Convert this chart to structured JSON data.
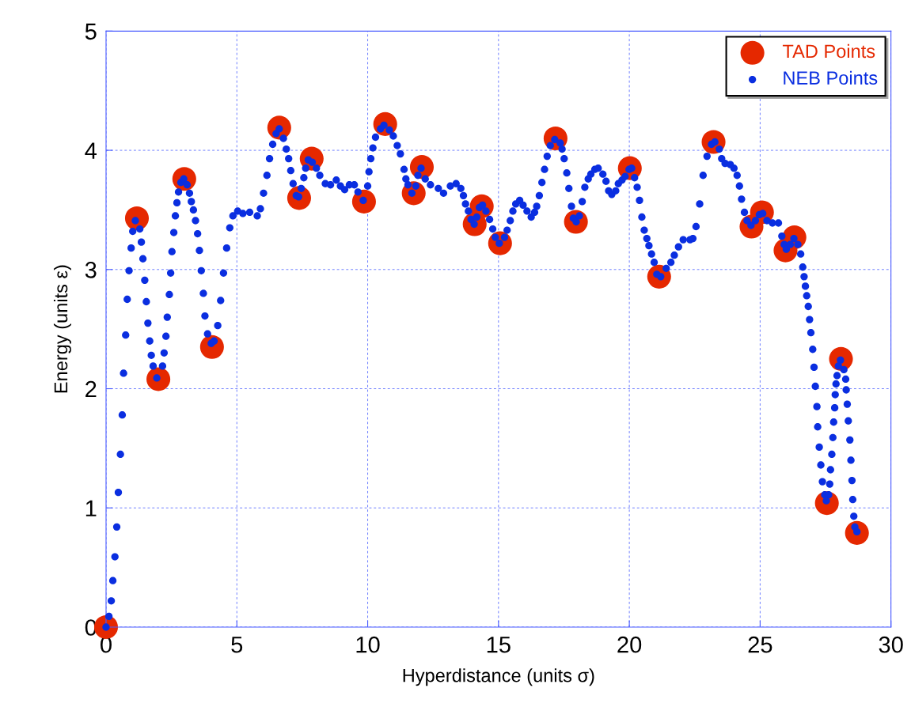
{
  "chart_data": {
    "type": "scatter",
    "xlabel": "Hyperdistance (units σ)",
    "ylabel": "Energy (units ε)",
    "xlim": [
      0,
      30
    ],
    "ylim": [
      0,
      5
    ],
    "xticks": [
      0,
      5,
      10,
      15,
      20,
      25,
      30
    ],
    "yticks": [
      0,
      1,
      2,
      3,
      4,
      5
    ],
    "grid": true,
    "legend": "top right",
    "marker": "circle",
    "series": [
      {
        "name": "TAD Points",
        "color": "#e52800",
        "x": [
          0,
          1.18,
          2.0,
          2.99,
          4.05,
          6.62,
          7.38,
          7.86,
          9.86,
          10.67,
          11.76,
          12.07,
          14.09,
          14.36,
          15.06,
          17.18,
          17.96,
          20.02,
          21.14,
          23.22,
          24.67,
          25.07,
          25.97,
          26.31,
          27.55,
          28.09,
          28.7
        ],
        "values": [
          0,
          3.43,
          2.08,
          3.76,
          2.35,
          4.19,
          3.6,
          3.93,
          3.57,
          4.22,
          3.64,
          3.86,
          3.38,
          3.53,
          3.22,
          4.1,
          3.4,
          3.85,
          2.94,
          4.07,
          3.36,
          3.48,
          3.16,
          3.27,
          1.04,
          2.25,
          0.79
        ]
      },
      {
        "name": "NEB Points",
        "color": "#0a2ee0",
        "x": [
          0,
          0.11,
          0.2,
          0.26,
          0.34,
          0.41,
          0.47,
          0.55,
          0.62,
          0.67,
          0.75,
          0.81,
          0.88,
          0.96,
          1.02,
          1.12,
          1.29,
          1.35,
          1.41,
          1.48,
          1.54,
          1.6,
          1.67,
          1.73,
          1.8,
          1.94,
          2.16,
          2.22,
          2.29,
          2.34,
          2.42,
          2.47,
          2.52,
          2.59,
          2.65,
          2.71,
          2.77,
          2.86,
          2.97,
          3.1,
          3.19,
          3.26,
          3.34,
          3.42,
          3.5,
          3.57,
          3.64,
          3.72,
          3.78,
          3.88,
          4.02,
          4.13,
          4.27,
          4.38,
          4.49,
          4.61,
          4.73,
          4.85,
          5.03,
          5.23,
          5.49,
          5.78,
          5.9,
          6.02,
          6.15,
          6.25,
          6.37,
          6.5,
          6.62,
          6.78,
          6.89,
          6.98,
          7.06,
          7.15,
          7.27,
          7.36,
          7.46,
          7.56,
          7.63,
          7.73,
          7.88,
          8.04,
          8.17,
          8.38,
          8.58,
          8.8,
          8.96,
          9.12,
          9.3,
          9.49,
          9.63,
          9.83,
          10.0,
          10.05,
          10.12,
          10.2,
          10.3,
          10.49,
          10.62,
          10.83,
          10.98,
          11.13,
          11.25,
          11.39,
          11.46,
          11.54,
          11.69,
          11.84,
          11.92,
          12.04,
          12.2,
          12.4,
          12.7,
          12.9,
          13.16,
          13.38,
          13.56,
          13.66,
          13.74,
          13.85,
          13.95,
          14.07,
          14.17,
          14.27,
          14.39,
          14.52,
          14.66,
          14.78,
          14.88,
          15.03,
          15.23,
          15.33,
          15.45,
          15.55,
          15.66,
          15.81,
          15.94,
          16.09,
          16.25,
          16.38,
          16.46,
          16.56,
          16.66,
          16.76,
          16.86,
          16.98,
          17.15,
          17.36,
          17.43,
          17.51,
          17.61,
          17.69,
          17.79,
          17.86,
          17.97,
          18.09,
          18.2,
          18.3,
          18.43,
          18.53,
          18.68,
          18.81,
          18.99,
          19.11,
          19.21,
          19.33,
          19.48,
          19.58,
          19.72,
          19.84,
          19.99,
          20.09,
          20.2,
          20.3,
          20.39,
          20.48,
          20.57,
          20.67,
          20.75,
          20.85,
          20.95,
          21.05,
          21.2,
          21.41,
          21.59,
          21.72,
          21.88,
          22.06,
          22.32,
          22.43,
          22.55,
          22.69,
          22.82,
          22.97,
          23.14,
          23.27,
          23.44,
          23.53,
          23.66,
          23.86,
          24.0,
          24.12,
          24.21,
          24.29,
          24.4,
          24.5,
          24.65,
          24.82,
          24.97,
          25.1,
          25.26,
          25.47,
          25.7,
          25.83,
          25.92,
          26.0,
          26.15,
          26.29,
          26.44,
          26.55,
          26.63,
          26.68,
          26.73,
          26.78,
          26.84,
          26.89,
          26.94,
          27.01,
          27.06,
          27.11,
          27.17,
          27.2,
          27.26,
          27.32,
          27.38,
          27.47,
          27.53,
          27.62,
          27.66,
          27.69,
          27.74,
          27.78,
          27.81,
          27.85,
          27.87,
          27.9,
          27.94,
          27.99,
          28.07,
          28.2,
          28.27,
          28.29,
          28.33,
          28.37,
          28.43,
          28.47,
          28.51,
          28.54,
          28.58,
          28.62,
          28.7
        ],
        "values": [
          0,
          0.09,
          0.22,
          0.39,
          0.59,
          0.84,
          1.13,
          1.45,
          1.78,
          2.13,
          2.45,
          2.75,
          2.99,
          3.18,
          3.32,
          3.41,
          3.34,
          3.23,
          3.09,
          2.91,
          2.73,
          2.55,
          2.4,
          2.28,
          2.19,
          2.09,
          2.19,
          2.3,
          2.44,
          2.6,
          2.79,
          2.97,
          3.15,
          3.31,
          3.45,
          3.56,
          3.65,
          3.73,
          3.76,
          3.71,
          3.64,
          3.57,
          3.5,
          3.41,
          3.3,
          3.16,
          2.99,
          2.8,
          2.61,
          2.46,
          2.38,
          2.4,
          2.53,
          2.74,
          2.97,
          3.18,
          3.35,
          3.45,
          3.49,
          3.47,
          3.48,
          3.45,
          3.51,
          3.64,
          3.79,
          3.93,
          4.05,
          4.14,
          4.18,
          4.1,
          4.01,
          3.93,
          3.83,
          3.72,
          3.62,
          3.61,
          3.68,
          3.77,
          3.85,
          3.92,
          3.9,
          3.85,
          3.79,
          3.72,
          3.71,
          3.75,
          3.7,
          3.67,
          3.71,
          3.71,
          3.65,
          3.58,
          3.7,
          3.82,
          3.93,
          4.02,
          4.11,
          4.18,
          4.21,
          4.17,
          4.12,
          4.04,
          3.97,
          3.84,
          3.76,
          3.71,
          3.64,
          3.7,
          3.79,
          3.85,
          3.76,
          3.71,
          3.68,
          3.64,
          3.7,
          3.72,
          3.68,
          3.62,
          3.55,
          3.49,
          3.42,
          3.38,
          3.44,
          3.52,
          3.54,
          3.49,
          3.42,
          3.34,
          3.27,
          3.22,
          3.27,
          3.33,
          3.41,
          3.49,
          3.55,
          3.58,
          3.54,
          3.49,
          3.44,
          3.48,
          3.53,
          3.62,
          3.73,
          3.84,
          3.95,
          4.04,
          4.09,
          4.06,
          4.01,
          3.93,
          3.81,
          3.68,
          3.53,
          3.43,
          3.4,
          3.45,
          3.57,
          3.69,
          3.76,
          3.8,
          3.84,
          3.85,
          3.8,
          3.74,
          3.66,
          3.63,
          3.66,
          3.72,
          3.75,
          3.78,
          3.84,
          3.85,
          3.77,
          3.69,
          3.58,
          3.44,
          3.33,
          3.26,
          3.2,
          3.13,
          3.06,
          2.96,
          2.94,
          3.01,
          3.06,
          3.12,
          3.19,
          3.25,
          3.25,
          3.26,
          3.36,
          3.55,
          3.79,
          3.95,
          4.05,
          4.07,
          4.01,
          3.93,
          3.89,
          3.88,
          3.85,
          3.79,
          3.7,
          3.59,
          3.48,
          3.41,
          3.37,
          3.41,
          3.46,
          3.47,
          3.41,
          3.39,
          3.39,
          3.28,
          3.21,
          3.17,
          3.21,
          3.26,
          3.21,
          3.13,
          3.02,
          2.94,
          2.86,
          2.78,
          2.69,
          2.58,
          2.47,
          2.33,
          2.18,
          2.02,
          1.85,
          1.68,
          1.51,
          1.36,
          1.22,
          1.11,
          1.06,
          1.11,
          1.2,
          1.32,
          1.45,
          1.59,
          1.72,
          1.84,
          1.95,
          2.04,
          2.11,
          2.19,
          2.24,
          2.16,
          2.08,
          1.99,
          1.87,
          1.73,
          1.57,
          1.4,
          1.23,
          1.07,
          0.93,
          0.84,
          0.8
        ]
      }
    ]
  }
}
